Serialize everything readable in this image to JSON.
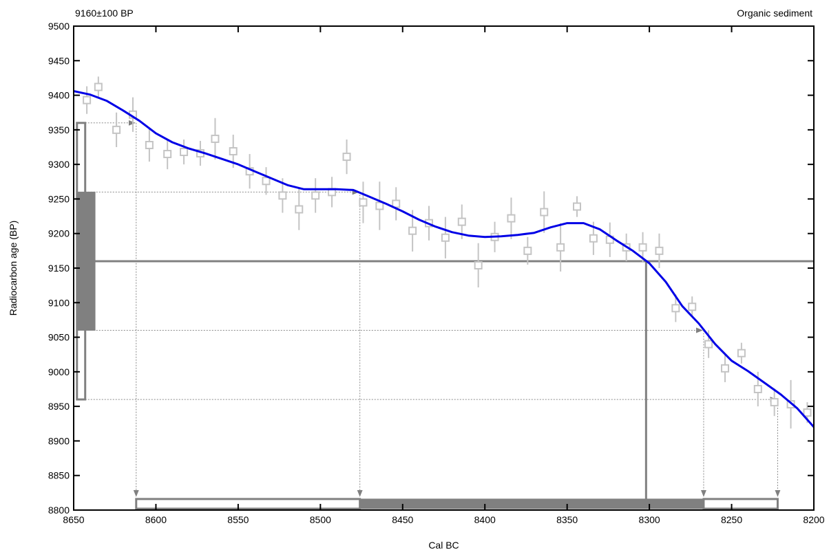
{
  "chart_data": {
    "type": "line",
    "title_left": "9160±100 BP",
    "title_right": "Organic sediment",
    "xlabel": "Cal BC",
    "ylabel": "Radiocarbon age (BP)",
    "xlim": [
      8650,
      8200
    ],
    "ylim": [
      8800,
      9500
    ],
    "x_ticks": [
      8650,
      8600,
      8550,
      8500,
      8450,
      8400,
      8350,
      8300,
      8250,
      8200
    ],
    "y_ticks": [
      8800,
      8850,
      8900,
      8950,
      9000,
      9050,
      9100,
      9150,
      9200,
      9250,
      9300,
      9350,
      9400,
      9450,
      9500
    ],
    "colors": {
      "curve": "#0000e6",
      "data": "#c4c4c4",
      "ranges": "#808080",
      "guides": "#8a8a8a"
    },
    "series": [
      {
        "kind": "calibration_curve",
        "x": [
          8650,
          8640,
          8630,
          8620,
          8610,
          8600,
          8590,
          8580,
          8570,
          8560,
          8550,
          8540,
          8530,
          8520,
          8510,
          8500,
          8490,
          8480,
          8470,
          8460,
          8450,
          8440,
          8430,
          8420,
          8410,
          8400,
          8390,
          8380,
          8370,
          8360,
          8350,
          8340,
          8330,
          8320,
          8310,
          8300,
          8290,
          8280,
          8270,
          8260,
          8250,
          8240,
          8230,
          8220,
          8210,
          8200
        ],
        "y": [
          9406,
          9401,
          9392,
          9378,
          9363,
          9345,
          9332,
          9323,
          9316,
          9308,
          9300,
          9290,
          9280,
          9270,
          9264,
          9264,
          9264,
          9263,
          9253,
          9243,
          9232,
          9220,
          9210,
          9202,
          9197,
          9195,
          9196,
          9198,
          9201,
          9209,
          9215,
          9215,
          9206,
          9190,
          9175,
          9157,
          9130,
          9095,
          9070,
          9040,
          9016,
          9001,
          8984,
          8967,
          8947,
          8920
        ]
      },
      {
        "kind": "data_points",
        "x": [
          8642,
          8635,
          8624,
          8614,
          8604,
          8593,
          8583,
          8573,
          8564,
          8553,
          8543,
          8533,
          8523,
          8513,
          8503,
          8493,
          8484,
          8474,
          8464,
          8454,
          8444,
          8434,
          8424,
          8414,
          8404,
          8394,
          8384,
          8374,
          8364,
          8354,
          8344,
          8334,
          8324,
          8314,
          8304,
          8294,
          8284,
          8274,
          8264,
          8254,
          8244,
          8234,
          8224,
          8214,
          8204
        ],
        "y": [
          9393,
          9412,
          9350,
          9372,
          9328,
          9315,
          9318,
          9316,
          9337,
          9319,
          9290,
          9276,
          9255,
          9235,
          9255,
          9260,
          9311,
          9245,
          9240,
          9243,
          9204,
          9215,
          9194,
          9217,
          9154,
          9195,
          9222,
          9175,
          9231,
          9180,
          9239,
          9193,
          9191,
          9180,
          9180,
          9175,
          9092,
          9094,
          9040,
          9005,
          9027,
          8975,
          8956,
          8953,
          8941
        ],
        "err": [
          20,
          15,
          25,
          25,
          24,
          22,
          18,
          18,
          30,
          24,
          25,
          20,
          25,
          30,
          25,
          22,
          25,
          30,
          35,
          24,
          30,
          25,
          30,
          25,
          32,
          22,
          30,
          20,
          30,
          35,
          15,
          24,
          25,
          20,
          22,
          25,
          20,
          15,
          20,
          20,
          15,
          25,
          20,
          35,
          15
        ]
      }
    ],
    "sample": {
      "age": 9160,
      "sigma1": [
        9060,
        9260
      ],
      "sigma2": [
        8960,
        9360
      ]
    },
    "calibrated_ranges": {
      "sigma1": [
        [
          8476,
          8267
        ]
      ],
      "sigma2": [
        [
          8612,
          8476
        ],
        [
          8267,
          8222
        ]
      ],
      "intercept": 8302
    }
  }
}
